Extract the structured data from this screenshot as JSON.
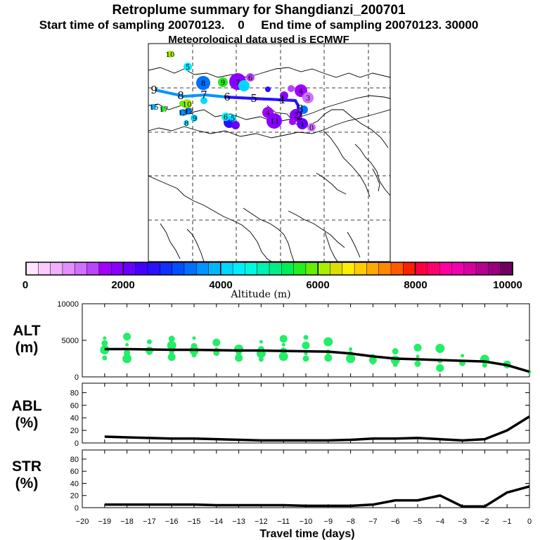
{
  "title": {
    "line1": "Retroplume summary for Shangdianzi_200701",
    "line2": "Start time of sampling 20070123.    0     End time of sampling 20070123. 30000",
    "line3": "Meteorological data used is ECMWF"
  },
  "colorbar": {
    "label": "Altitude (m)",
    "ticks": [
      "0",
      "2000",
      "4000",
      "6000",
      "8000",
      "10000"
    ],
    "colors": [
      "#ffe6ff",
      "#f8ccff",
      "#f0b0ff",
      "#e290ff",
      "#d070ff",
      "#bb44ff",
      "#a400ff",
      "#8800ff",
      "#6a00ff",
      "#4400ff",
      "#2a10ff",
      "#1030ff",
      "#0050ff",
      "#0070ff",
      "#0094ff",
      "#00b8ff",
      "#00d8ff",
      "#00eefe",
      "#00f8e0",
      "#00f0b0",
      "#00ee88",
      "#00ee55",
      "#22ee22",
      "#66ee00",
      "#aaee00",
      "#dddd00",
      "#ffee00",
      "#ffcc00",
      "#ffaa00",
      "#ff8800",
      "#ff5a00",
      "#ff2200",
      "#ff0040",
      "#ff0070",
      "#ff00a0",
      "#f000b0",
      "#d800a0",
      "#b80090",
      "#980080",
      "#700060"
    ]
  },
  "map": {
    "trajectory_labels": [
      "9",
      "8",
      "7",
      "6",
      "5",
      "4",
      "3",
      "2"
    ],
    "cluster_labels": [
      "10",
      "5",
      "8",
      "9",
      "7",
      "6",
      "4",
      "3",
      "2",
      "1",
      "0",
      "15",
      "17",
      "13",
      "12",
      "8",
      "9",
      "10",
      "11",
      "4",
      "6",
      "5"
    ]
  },
  "chart_data": [
    {
      "type": "line",
      "name": "ALT",
      "ylabel": [
        "ALT",
        "(m)"
      ],
      "ylim": [
        0,
        10000
      ],
      "yticks": [
        0,
        5000,
        10000
      ],
      "ytick_labels": [
        "0",
        "5000",
        "10000"
      ],
      "x": [
        -19,
        -18,
        -17,
        -16,
        -15,
        -14,
        -13,
        -12,
        -11,
        -10,
        -9,
        -8,
        -7,
        -6,
        -5,
        -4,
        -3,
        -2,
        -1,
        0
      ],
      "values": [
        3800,
        3800,
        3750,
        3700,
        3700,
        3650,
        3600,
        3600,
        3550,
        3500,
        3450,
        3200,
        2800,
        2500,
        2400,
        2300,
        2200,
        2100,
        1600,
        700
      ],
      "cluster_points": [
        [
          -19,
          5300
        ],
        [
          -19,
          4600
        ],
        [
          -19,
          3700
        ],
        [
          -19,
          2600
        ],
        [
          -18,
          5500
        ],
        [
          -18,
          4400
        ],
        [
          -18,
          3300
        ],
        [
          -18,
          2500
        ],
        [
          -17,
          4800
        ],
        [
          -17,
          3600
        ],
        [
          -17,
          3200
        ],
        [
          -16,
          5200
        ],
        [
          -16,
          4300
        ],
        [
          -16,
          3400
        ],
        [
          -16,
          2700
        ],
        [
          -15,
          5300
        ],
        [
          -15,
          4200
        ],
        [
          -15,
          3600
        ],
        [
          -15,
          3000
        ],
        [
          -14,
          4700
        ],
        [
          -14,
          3800
        ],
        [
          -14,
          3300
        ],
        [
          -13,
          3800
        ],
        [
          -13,
          3200
        ],
        [
          -13,
          2600
        ],
        [
          -12,
          4800
        ],
        [
          -12,
          3800
        ],
        [
          -12,
          3200
        ],
        [
          -12,
          2400
        ],
        [
          -11,
          5200
        ],
        [
          -11,
          4400
        ],
        [
          -11,
          3600
        ],
        [
          -11,
          2800
        ],
        [
          -10,
          5400
        ],
        [
          -10,
          4300
        ],
        [
          -10,
          3200
        ],
        [
          -10,
          2500
        ],
        [
          -9,
          4800
        ],
        [
          -9,
          3400
        ],
        [
          -9,
          2600
        ],
        [
          -8,
          3800
        ],
        [
          -8,
          3100
        ],
        [
          -8,
          2500
        ],
        [
          -7,
          2800
        ],
        [
          -7,
          2300
        ],
        [
          -7,
          1900
        ],
        [
          -6,
          3500
        ],
        [
          -6,
          2300
        ],
        [
          -6,
          1700
        ],
        [
          -5,
          4000
        ],
        [
          -5,
          2800
        ],
        [
          -5,
          1800
        ],
        [
          -4,
          3900
        ],
        [
          -4,
          2200
        ],
        [
          -4,
          1200
        ],
        [
          -3,
          2900
        ],
        [
          -3,
          1900
        ],
        [
          -2,
          2400
        ],
        [
          -2,
          1600
        ],
        [
          -1,
          1700
        ],
        [
          0,
          700
        ]
      ],
      "cluster_color": "#22ee66"
    },
    {
      "type": "line",
      "name": "ABL",
      "ylabel": [
        "ABL",
        "(%)"
      ],
      "ylim": [
        0,
        95
      ],
      "yticks": [
        0,
        20,
        40,
        60,
        80
      ],
      "ytick_labels": [
        "0",
        "20",
        "40",
        "60",
        "80"
      ],
      "x": [
        -19,
        -18,
        -17,
        -16,
        -15,
        -14,
        -13,
        -12,
        -11,
        -10,
        -9,
        -8,
        -7,
        -6,
        -5,
        -4,
        -3,
        -2,
        -1,
        0
      ],
      "values": [
        10,
        9,
        8,
        7,
        7,
        6,
        5,
        4,
        4,
        4,
        4,
        5,
        7,
        7,
        8,
        6,
        4,
        6,
        20,
        42
      ]
    },
    {
      "type": "line",
      "name": "STR",
      "ylabel": [
        "STR",
        "(%)"
      ],
      "ylim": [
        0,
        95
      ],
      "yticks": [
        0,
        20,
        40,
        60,
        80
      ],
      "ytick_labels": [
        "0",
        "20",
        "40",
        "60",
        "80"
      ],
      "x": [
        -19,
        -18,
        -17,
        -16,
        -15,
        -14,
        -13,
        -12,
        -11,
        -10,
        -9,
        -8,
        -7,
        -6,
        -5,
        -4,
        -3,
        -2,
        -1,
        0
      ],
      "values": [
        5,
        5,
        5,
        5,
        5,
        4,
        4,
        4,
        4,
        3,
        3,
        3,
        5,
        12,
        12,
        20,
        2,
        2,
        25,
        35
      ]
    }
  ],
  "xaxis": {
    "label": "Travel time (days)",
    "range": [
      -20,
      0
    ],
    "ticks": [
      "−20",
      "−19",
      "−18",
      "−17",
      "−16",
      "−15",
      "−14",
      "−13",
      "−12",
      "−11",
      "−10",
      "−9",
      "−8",
      "−7",
      "−6",
      "−5",
      "−4",
      "−3",
      "−2",
      "−1",
      "0"
    ]
  }
}
